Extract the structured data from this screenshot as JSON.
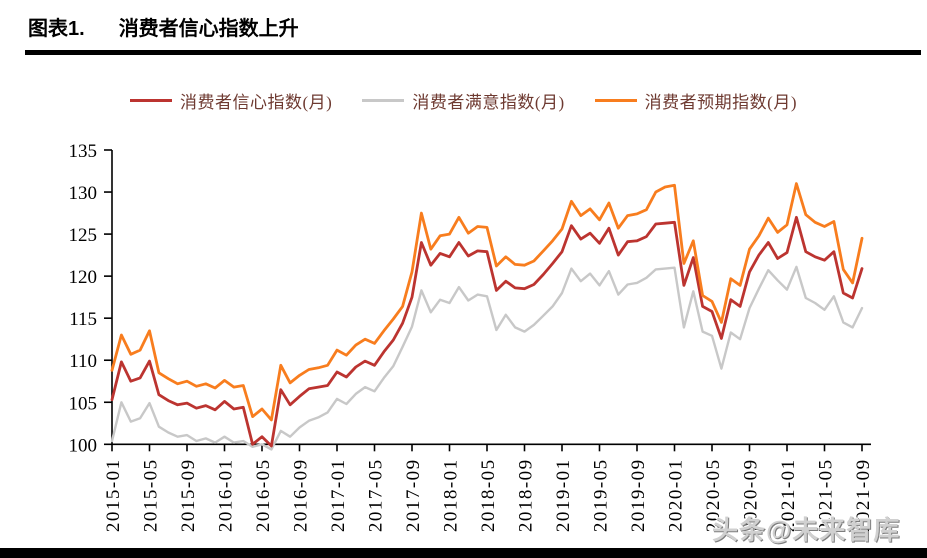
{
  "header": {
    "figure_label": "图表1.",
    "figure_title": "消费者信心指数上升"
  },
  "watermark": {
    "text": "头条@未来智库"
  },
  "colors": {
    "confidence": "#bc3430",
    "satisfaction": "#c8c8c8",
    "expectation": "#f87d1e",
    "legend_text": "#6e3a31",
    "axis": "#000000",
    "title_rule": "#000000"
  },
  "chart_data": {
    "type": "line",
    "title": "消费者信心指数上升",
    "xlabel": "",
    "ylabel": "",
    "ylim": [
      100,
      135
    ],
    "y_ticks": [
      100,
      105,
      110,
      115,
      120,
      125,
      130,
      135
    ],
    "grid": false,
    "legend_position": "top",
    "x_tick_every": 4,
    "x": [
      "2015-01",
      "2015-02",
      "2015-03",
      "2015-04",
      "2015-05",
      "2015-06",
      "2015-07",
      "2015-08",
      "2015-09",
      "2015-10",
      "2015-11",
      "2015-12",
      "2016-01",
      "2016-02",
      "2016-03",
      "2016-04",
      "2016-05",
      "2016-06",
      "2016-07",
      "2016-08",
      "2016-09",
      "2016-10",
      "2016-11",
      "2016-12",
      "2017-01",
      "2017-02",
      "2017-03",
      "2017-04",
      "2017-05",
      "2017-06",
      "2017-07",
      "2017-08",
      "2017-09",
      "2017-10",
      "2017-11",
      "2017-12",
      "2018-01",
      "2018-02",
      "2018-03",
      "2018-04",
      "2018-05",
      "2018-06",
      "2018-07",
      "2018-08",
      "2018-09",
      "2018-10",
      "2018-11",
      "2018-12",
      "2019-01",
      "2019-02",
      "2019-03",
      "2019-04",
      "2019-05",
      "2019-06",
      "2019-07",
      "2019-08",
      "2019-09",
      "2019-10",
      "2019-11",
      "2019-12",
      "2020-01",
      "2020-02",
      "2020-03",
      "2020-04",
      "2020-05",
      "2020-06",
      "2020-07",
      "2020-08",
      "2020-09",
      "2020-10",
      "2020-11",
      "2020-12",
      "2021-01",
      "2021-02",
      "2021-03",
      "2021-04",
      "2021-05",
      "2021-06",
      "2021-07",
      "2021-08",
      "2021-09"
    ],
    "x_tick_labels": [
      "2015-01",
      "2015-05",
      "2015-09",
      "2016-01",
      "2016-05",
      "2016-09",
      "2017-01",
      "2017-05",
      "2017-09",
      "2018-01",
      "2018-05",
      "2018-09",
      "2019-01",
      "2019-05",
      "2019-09",
      "2020-01",
      "2020-05",
      "2020-09",
      "2021-01",
      "2021-05",
      "2021-09"
    ],
    "series": [
      {
        "name": "消费者信心指数(月)",
        "color": "#bc3430",
        "values": [
          105.3,
          109.8,
          107.5,
          107.9,
          109.9,
          105.9,
          105.2,
          104.7,
          104.9,
          104.3,
          104.6,
          104.1,
          105.1,
          104.2,
          104.4,
          100.0,
          100.9,
          99.8,
          106.5,
          104.7,
          105.7,
          106.6,
          106.8,
          107.0,
          108.6,
          108.0,
          109.2,
          109.9,
          109.4,
          111.0,
          112.4,
          114.4,
          117.5,
          124.0,
          121.3,
          122.7,
          122.3,
          124.0,
          122.4,
          123.0,
          122.9,
          118.3,
          119.4,
          118.6,
          118.5,
          119.0,
          120.2,
          121.5,
          122.9,
          126.0,
          124.4,
          125.1,
          123.9,
          125.7,
          122.5,
          124.1,
          124.2,
          124.7,
          126.2,
          126.3,
          126.4,
          118.9,
          122.2,
          116.4,
          115.8,
          112.6,
          117.2,
          116.4,
          120.5,
          122.5,
          124.0,
          122.1,
          122.8,
          127.0,
          122.9,
          122.3,
          121.9,
          122.9,
          118.0,
          117.4,
          120.9
        ]
      },
      {
        "name": "消费者满意指数(月)",
        "color": "#c8c8c8",
        "values": [
          100.4,
          105.0,
          102.7,
          103.1,
          104.9,
          102.1,
          101.4,
          100.9,
          101.1,
          100.4,
          100.7,
          100.2,
          100.9,
          100.2,
          100.4,
          99.7,
          100.0,
          99.4,
          101.6,
          100.9,
          102.0,
          102.8,
          103.2,
          103.8,
          105.4,
          104.8,
          106.0,
          106.8,
          106.3,
          107.9,
          109.3,
          111.6,
          114.0,
          118.3,
          115.7,
          117.2,
          116.8,
          118.7,
          117.1,
          117.8,
          117.6,
          113.6,
          115.4,
          113.9,
          113.4,
          114.2,
          115.3,
          116.4,
          118.0,
          120.9,
          119.4,
          120.3,
          118.9,
          120.6,
          117.8,
          119.0,
          119.2,
          119.8,
          120.8,
          120.9,
          121.0,
          113.9,
          118.2,
          113.4,
          112.9,
          109.0,
          113.3,
          112.5,
          116.2,
          118.5,
          120.7,
          119.5,
          118.4,
          121.1,
          117.4,
          116.8,
          116.0,
          117.6,
          114.5,
          113.9,
          116.2
        ]
      },
      {
        "name": "消费者预期指数(月)",
        "color": "#f87d1e",
        "values": [
          108.8,
          113.0,
          110.7,
          111.2,
          113.5,
          108.5,
          107.8,
          107.2,
          107.5,
          106.9,
          107.2,
          106.7,
          107.6,
          106.8,
          107.0,
          103.3,
          104.2,
          102.9,
          109.4,
          107.3,
          108.2,
          108.9,
          109.1,
          109.4,
          111.2,
          110.6,
          111.8,
          112.5,
          112.0,
          113.5,
          114.9,
          116.4,
          120.5,
          127.5,
          123.2,
          124.8,
          125.0,
          127.0,
          125.1,
          125.9,
          125.8,
          121.2,
          122.3,
          121.4,
          121.3,
          121.8,
          123.0,
          124.2,
          125.6,
          128.9,
          127.2,
          128.0,
          126.7,
          128.7,
          125.7,
          127.2,
          127.4,
          127.9,
          130.0,
          130.6,
          130.8,
          121.5,
          124.2,
          117.7,
          117.0,
          114.5,
          119.7,
          118.9,
          123.2,
          124.8,
          126.9,
          125.2,
          126.1,
          131.0,
          127.3,
          126.4,
          125.9,
          126.5,
          120.8,
          119.2,
          124.5
        ]
      }
    ]
  }
}
